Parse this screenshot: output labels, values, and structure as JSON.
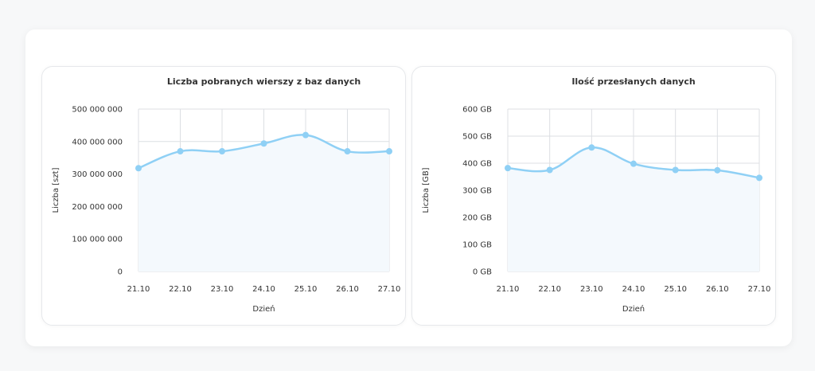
{
  "colors": {
    "line": "#8fd0f5",
    "area": "#f4f9fd",
    "grid": "#dcdfe3"
  },
  "chart_data": [
    {
      "type": "area",
      "title": "Liczba pobranych wierszy z baz danych",
      "xlabel": "Dzień",
      "ylabel": "Liczba [szt]",
      "categories": [
        "21.10",
        "22.10",
        "23.10",
        "24.10",
        "25.10",
        "26.10",
        "27.10"
      ],
      "values": [
        318000000,
        370000000,
        370000000,
        394000000,
        420000000,
        370000000,
        370000000
      ],
      "ylim": [
        0,
        500000000
      ],
      "yticks": [
        0,
        100000000,
        200000000,
        300000000,
        400000000,
        500000000
      ],
      "ytick_labels": [
        "0",
        "100 000 000",
        "200 000 000",
        "300 000 000",
        "400 000 000",
        "500 000 000"
      ],
      "grid": true,
      "legend": "none"
    },
    {
      "type": "area",
      "title": "Ilość przesłanych danych",
      "xlabel": "Dzień",
      "ylabel": "Liczba [GB]",
      "categories": [
        "21.10",
        "22.10",
        "23.10",
        "24.10",
        "25.10",
        "26.10",
        "27.10"
      ],
      "values": [
        382,
        375,
        458,
        398,
        375,
        374,
        346
      ],
      "ylim": [
        0,
        600
      ],
      "yticks": [
        0,
        100,
        200,
        300,
        400,
        500,
        600
      ],
      "ytick_labels": [
        "0 GB",
        "100 GB",
        "200 GB",
        "300 GB",
        "400 GB",
        "500 GB",
        "600 GB"
      ],
      "grid": true,
      "legend": "none"
    }
  ]
}
